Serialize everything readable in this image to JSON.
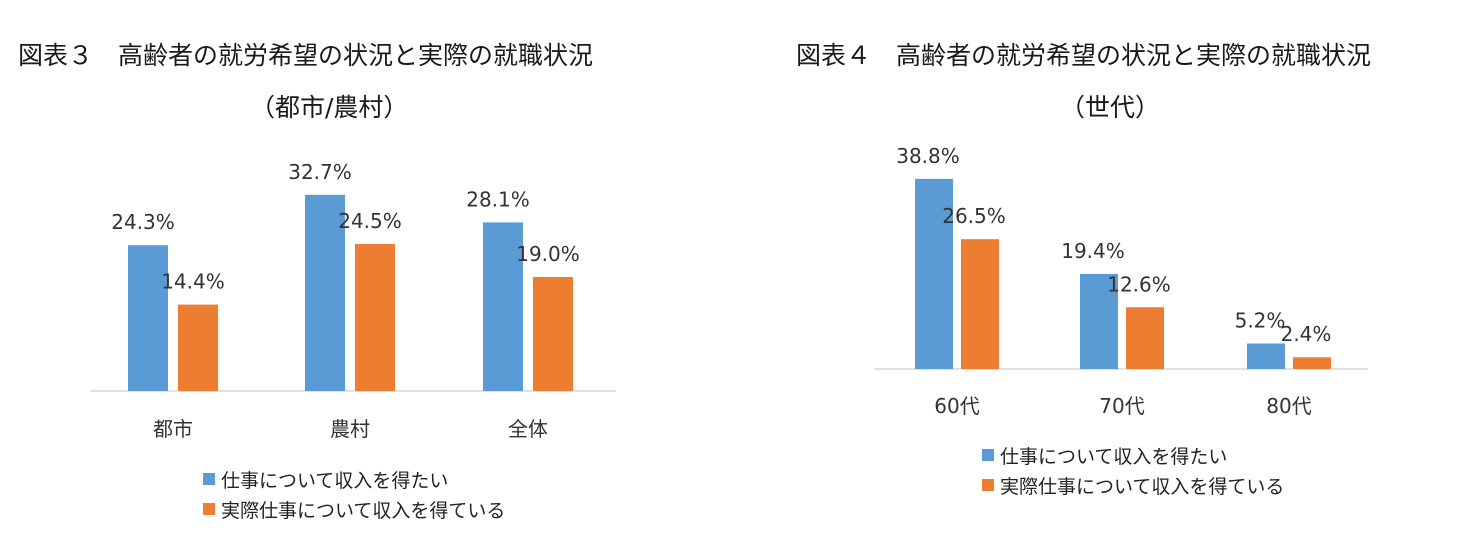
{
  "colors": {
    "series1": "#5b9bd5",
    "series2": "#ed7d31",
    "axis": "#d9d9d9"
  },
  "chart_data": [
    {
      "type": "bar",
      "title": "図表３　高齢者の就労希望の状況と実際の就職状況",
      "subtitle": "（都市/農村）",
      "categories": [
        "都市",
        "農村",
        "全体"
      ],
      "series": [
        {
          "name": "仕事について収入を得たい",
          "values": [
            24.3,
            32.7,
            28.1
          ],
          "labels": [
            "24.3%",
            "32.7%",
            "28.1%"
          ]
        },
        {
          "name": "実際仕事について収入を得ている",
          "values": [
            14.4,
            24.5,
            19.0
          ],
          "labels": [
            "14.4%",
            "24.5%",
            "19.0%"
          ]
        }
      ],
      "ylim": [
        0,
        40
      ],
      "grid": false,
      "legend": "bottom"
    },
    {
      "type": "bar",
      "title": "図表４　高齢者の就労希望の状況と実際の就職状況",
      "subtitle": "（世代）",
      "categories": [
        "60代",
        "70代",
        "80代"
      ],
      "series": [
        {
          "name": "仕事について収入を得たい",
          "values": [
            38.8,
            19.4,
            5.2
          ],
          "labels": [
            "38.8%",
            "19.4%",
            "5.2%"
          ]
        },
        {
          "name": "実際仕事について収入を得ている",
          "values": [
            26.5,
            12.6,
            2.4
          ],
          "labels": [
            "26.5%",
            "12.6%",
            "2.4%"
          ]
        }
      ],
      "ylim": [
        0,
        40
      ],
      "grid": false,
      "legend": "bottom"
    }
  ]
}
